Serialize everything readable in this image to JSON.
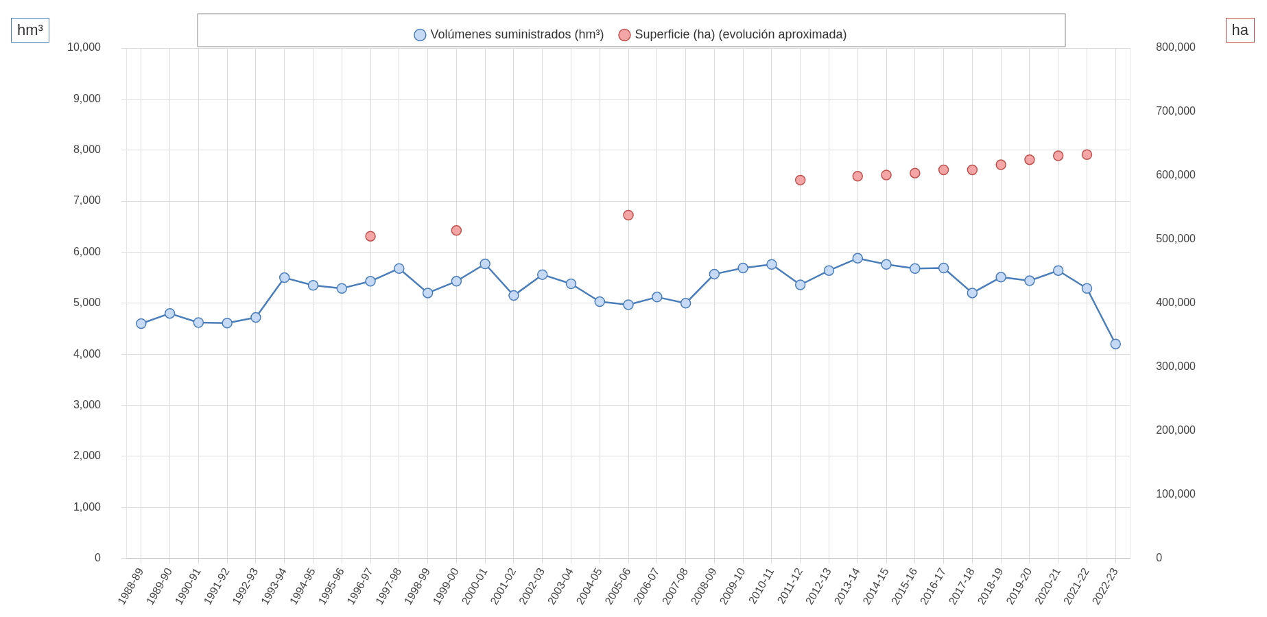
{
  "chart_data": {
    "type": "line",
    "ylabel": "hm³",
    "y2label": "ha",
    "categories": [
      "1988-89",
      "1989-90",
      "1990-91",
      "1991-92",
      "1992-93",
      "1993-94",
      "1994-95",
      "1995-96",
      "1996-97",
      "1997-98",
      "1998-99",
      "1999-00",
      "2000-01",
      "2001-02",
      "2002-03",
      "2003-04",
      "2004-05",
      "2005-06",
      "2006-07",
      "2007-08",
      "2008-09",
      "2009-10",
      "2010-11",
      "2011-12",
      "2012-13",
      "2013-14",
      "2014-15",
      "2015-16",
      "2016-17",
      "2017-18",
      "2018-19",
      "2019-20",
      "2020-21",
      "2021-22",
      "2022-23"
    ],
    "series": [
      {
        "name": "Volúmenes suministrados (hm³)",
        "type": "line",
        "color": "#4a7ebb",
        "marker": "circle",
        "values": [
          4600,
          4800,
          4620,
          4610,
          4720,
          5500,
          5350,
          5290,
          5430,
          5680,
          5200,
          5430,
          5770,
          5150,
          5560,
          5380,
          5030,
          4970,
          5120,
          5000,
          5570,
          5690,
          5760,
          5360,
          5640,
          5880,
          5760,
          5680,
          5690,
          5200,
          5510,
          5440,
          5640,
          5290,
          4200
        ]
      },
      {
        "name": "Superficie (ha) (evolución aproximada)",
        "type": "scatter",
        "axis": "y2",
        "color": "#f4a6a6",
        "marker": "circle",
        "values": [
          null,
          null,
          null,
          null,
          null,
          null,
          null,
          null,
          505000,
          null,
          null,
          514000,
          null,
          null,
          null,
          null,
          null,
          538000,
          null,
          null,
          null,
          null,
          null,
          593000,
          null,
          599000,
          601000,
          604000,
          609000,
          609000,
          617000,
          625000,
          631000,
          633000,
          null
        ]
      }
    ],
    "ylim": [
      0,
      10000
    ],
    "yticks": [
      0,
      {
        "value": 1000,
        "label": "1,000"
      },
      {
        "value": 2000,
        "label": "2,000"
      },
      {
        "value": 3000,
        "label": "3,000"
      },
      {
        "value": 4000,
        "label": "4,000"
      },
      {
        "value": 5000,
        "label": "5,000"
      },
      {
        "value": 6000,
        "label": "6,000"
      },
      {
        "value": 7000,
        "label": "7,000"
      },
      {
        "value": 8000,
        "label": "8,000"
      },
      {
        "value": 9000,
        "label": "9,000"
      },
      {
        "value": 10000,
        "label": "10,000"
      }
    ],
    "y2lim": [
      0,
      800000
    ],
    "y2ticks": [
      0,
      {
        "value": 100000,
        "label": "100,000"
      },
      {
        "value": 200000,
        "label": "200,000"
      },
      {
        "value": 300000,
        "label": "300,000"
      },
      {
        "value": 400000,
        "label": "400,000"
      },
      {
        "value": 500000,
        "label": "500,000"
      },
      {
        "value": 600000,
        "label": "600,000"
      },
      {
        "value": 700000,
        "label": "700,000"
      },
      {
        "value": 800000,
        "label": "800,000"
      }
    ],
    "grid": true,
    "legend": "top"
  }
}
